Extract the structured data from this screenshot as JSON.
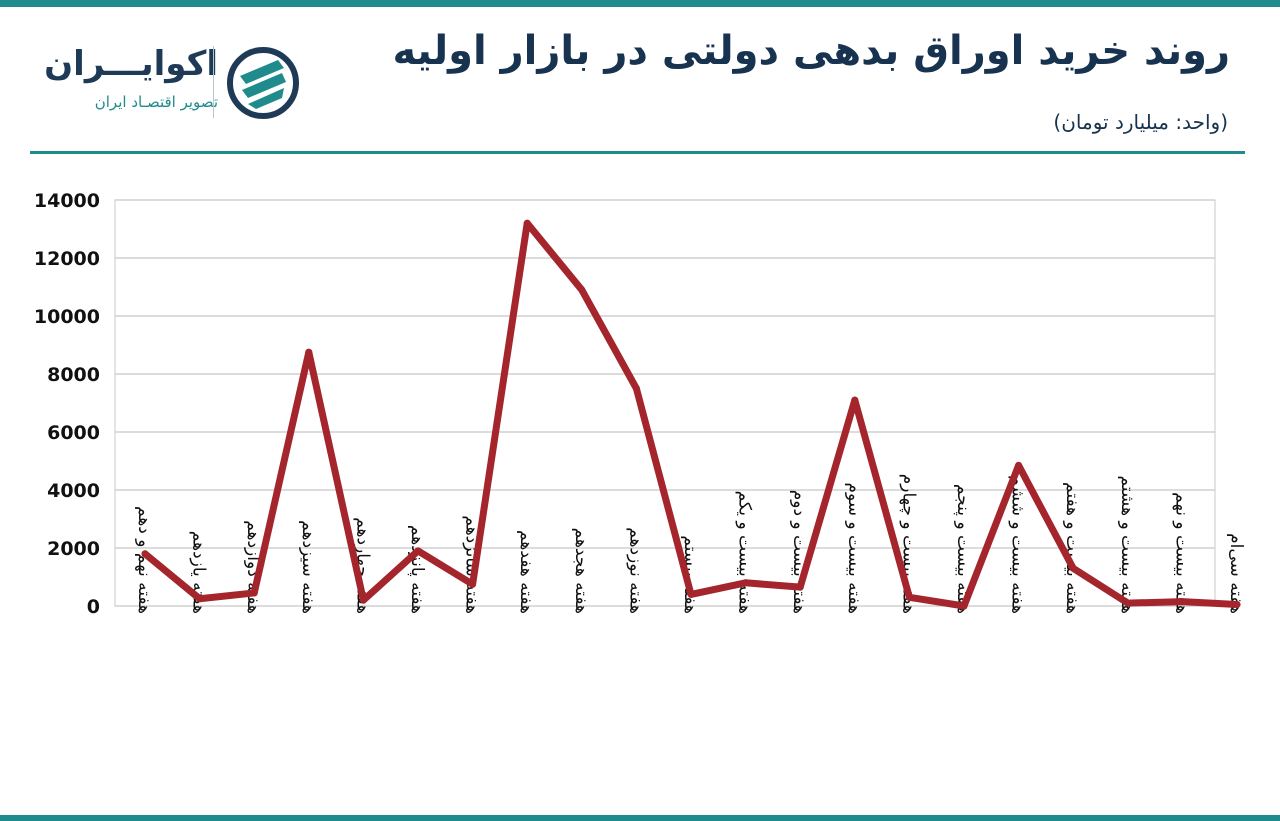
{
  "header": {
    "title": "روند خرید اوراق بدهی دولتی در بازار اولیه",
    "unit": "(واحد: میلیارد تومان)"
  },
  "logo": {
    "name": "اکوایـــران",
    "subtitle": "تصویر اقتصـاد ایران"
  },
  "colors": {
    "accent": "#1f8b8c",
    "title": "#17334f",
    "line": "#a4262c",
    "grid": "#c8c8c8"
  },
  "chart_data": {
    "type": "line",
    "title": "روند خرید اوراق بدهی دولتی در بازار اولیه",
    "xlabel": "",
    "ylabel": "",
    "ylim": [
      0,
      14000
    ],
    "yticks": [
      "0",
      "2000",
      "4000",
      "6000",
      "8000",
      "10000",
      "12000",
      "14000"
    ],
    "grid": true,
    "categories": [
      "هفته نهم و دهم",
      "هفته یازدهم",
      "هفته دوازدهم",
      "هفته سیزدهم",
      "هفته چهاردهم",
      "هفته پانزدهم",
      "هفته شانزدهم",
      "هفته هفدهم",
      "هفته هجدهم",
      "هفته نوزدهم",
      "هفته بیستم",
      "هفته بیست و یکم",
      "هفته بیست و دوم",
      "هفته بیست و سوم",
      "هفته بیست و چهارم",
      "هفته بیست و پنجم",
      "هفته بیست و ششم",
      "هفته بیست و هفتم",
      "هفته بیست و هشتم",
      "هفته بیست و نهم",
      "هفته سی‌ام"
    ],
    "values": [
      1800,
      250,
      450,
      8750,
      200,
      1900,
      750,
      13200,
      10900,
      7500,
      400,
      800,
      650,
      7100,
      300,
      0,
      4850,
      1300,
      100,
      150,
      50
    ]
  }
}
